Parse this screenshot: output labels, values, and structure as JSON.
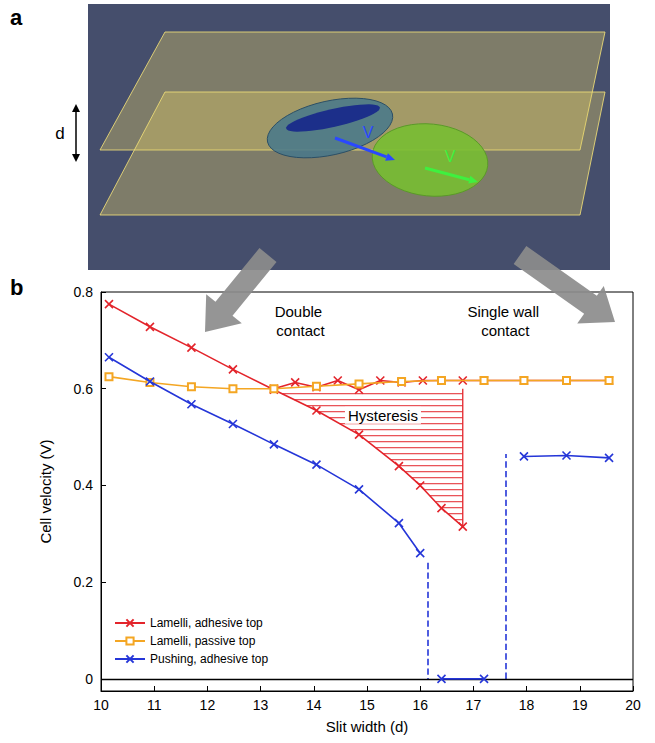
{
  "panel_a": {
    "panel": "a",
    "gap_label": "d",
    "velocity_labels": [
      "V",
      "V"
    ]
  },
  "chart_data": {
    "type": "line",
    "panel": "b",
    "xlabel": "Slit width (d)",
    "ylabel": "Cell velocity (V)",
    "annotations": [
      "Double contact",
      "Single wall contact",
      "Hysteresis"
    ],
    "xlim": [
      10,
      20
    ],
    "xticks": [
      10,
      11,
      12,
      13,
      14,
      15,
      16,
      17,
      18,
      19,
      20
    ],
    "ylim": [
      -0.025,
      0.8
    ],
    "yticks": [
      0,
      0.2,
      0.4,
      0.6,
      0.8
    ],
    "grid": false,
    "legend": "bottom-left",
    "series": [
      {
        "name": "Lamelli, adhesive top",
        "color": "#e3242b",
        "marker": "x",
        "line_style": "solid",
        "x": [
          10.15,
          10.92,
          11.7,
          12.48,
          13.25,
          14.05,
          14.85,
          15.6,
          16.0,
          16.4,
          16.8,
          13.25,
          13.25,
          13.65,
          14.05,
          14.45,
          14.85,
          15.25,
          15.65,
          16.05,
          16.4,
          16.8,
          17.2,
          17.95,
          18.75,
          19.55
        ],
        "values": [
          0.775,
          0.728,
          0.685,
          0.64,
          0.598,
          0.555,
          0.505,
          0.44,
          0.4,
          0.353,
          0.315,
          null,
          0.6,
          0.613,
          0.603,
          0.617,
          0.598,
          0.617,
          0.613,
          0.617,
          0.617,
          0.617,
          0.617,
          0.617,
          0.617,
          0.617
        ]
      },
      {
        "name": "Lamelli, passive top",
        "color": "#f4a623",
        "marker": "square_open",
        "line_style": "solid",
        "x": [
          10.15,
          10.92,
          11.7,
          12.48,
          13.25,
          14.05,
          14.85,
          15.65,
          16.4,
          17.2,
          17.95,
          18.75,
          19.55
        ],
        "values": [
          0.625,
          0.613,
          0.604,
          0.6,
          0.6,
          0.605,
          0.61,
          0.615,
          0.617,
          0.617,
          0.617,
          0.617,
          0.617
        ]
      },
      {
        "name": "Pushing, adhesive top",
        "color": "#2536d8",
        "marker": "x",
        "line_style": "solid",
        "x": [
          10.15,
          10.92,
          11.7,
          12.48,
          13.25,
          14.05,
          14.85,
          15.6,
          16.0,
          16.0,
          16.4,
          17.2,
          17.2,
          17.95,
          18.75,
          19.55
        ],
        "values": [
          0.665,
          0.615,
          0.568,
          0.527,
          0.485,
          0.443,
          0.392,
          0.322,
          0.26,
          null,
          0,
          0,
          null,
          0.46,
          0.462,
          0.457
        ],
        "jumps": [
          {
            "x": 16.15,
            "from": 0.24,
            "to": 0
          },
          {
            "x": 17.6,
            "from": 0,
            "to": 0.465
          }
        ]
      }
    ]
  }
}
